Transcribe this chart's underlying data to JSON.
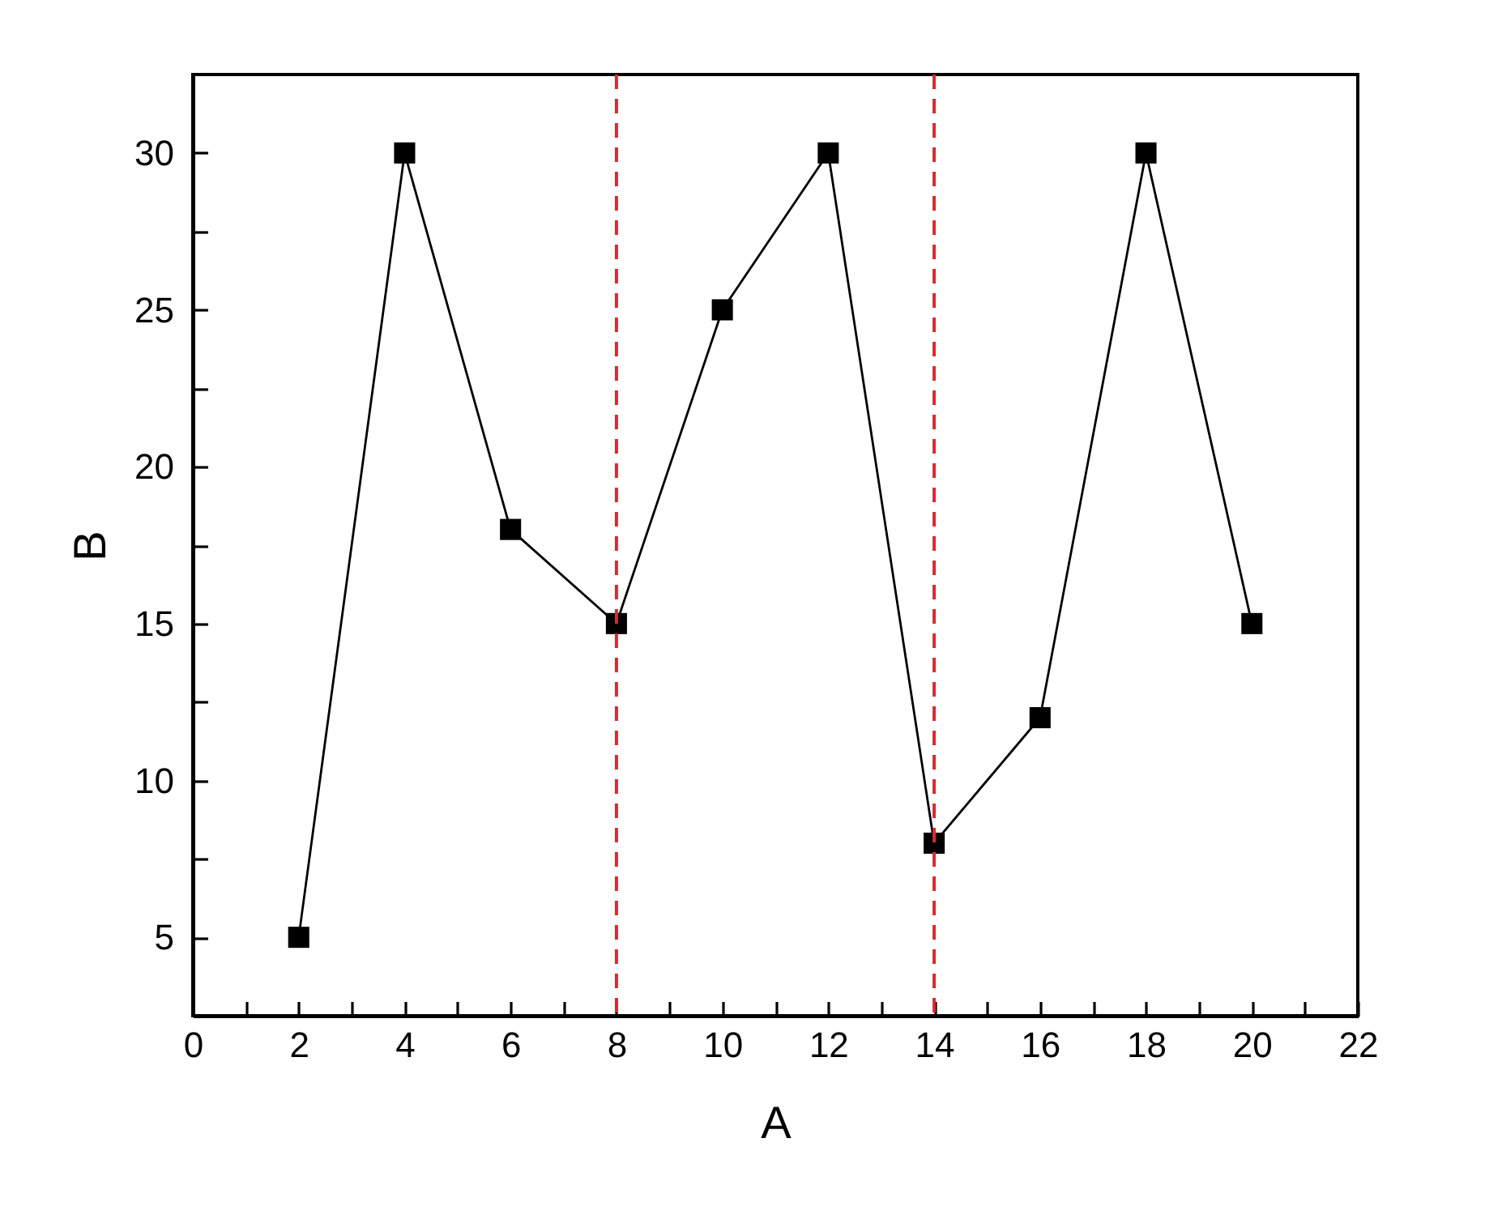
{
  "chart_data": {
    "type": "line",
    "xlabel": "A",
    "ylabel": "B",
    "x": [
      2,
      4,
      6,
      8,
      10,
      12,
      14,
      16,
      18,
      20
    ],
    "series": [
      {
        "color": "#000000",
        "values": [
          5,
          30,
          18,
          15,
          25,
          30,
          8,
          12,
          30,
          15
        ]
      }
    ],
    "xlim": [
      0,
      22
    ],
    "ylim": [
      2.5,
      32.5
    ],
    "xticks": [
      0,
      {
        "value": 1,
        "label": null
      },
      2,
      {
        "value": 3,
        "label": null
      },
      4,
      {
        "value": 5,
        "label": null
      },
      6,
      {
        "value": 7,
        "label": null
      },
      8,
      {
        "value": 9,
        "label": null
      },
      10,
      {
        "value": 11,
        "label": null
      },
      12,
      {
        "value": 13,
        "label": null
      },
      14,
      {
        "value": 15,
        "label": null
      },
      16,
      {
        "value": 17,
        "label": null
      },
      18,
      {
        "value": 19,
        "label": null
      },
      20,
      {
        "value": 21,
        "label": null
      },
      22
    ],
    "yticks": [
      5,
      {
        "value": 7.5,
        "label": null
      },
      10,
      {
        "value": 12.5,
        "label": null
      },
      15,
      {
        "value": 17.5,
        "label": null
      },
      20,
      {
        "value": 22.5,
        "label": null
      },
      25,
      {
        "value": 27.5,
        "label": null
      },
      30
    ],
    "marker": "square",
    "line_style": "solid",
    "grid": false,
    "ref_lines": [
      {
        "axis": "x",
        "value": 8,
        "color": "#e3262b",
        "line_style": "dashed"
      },
      {
        "axis": "x",
        "value": 14,
        "color": "#e3262b",
        "line_style": "dashed"
      }
    ]
  }
}
